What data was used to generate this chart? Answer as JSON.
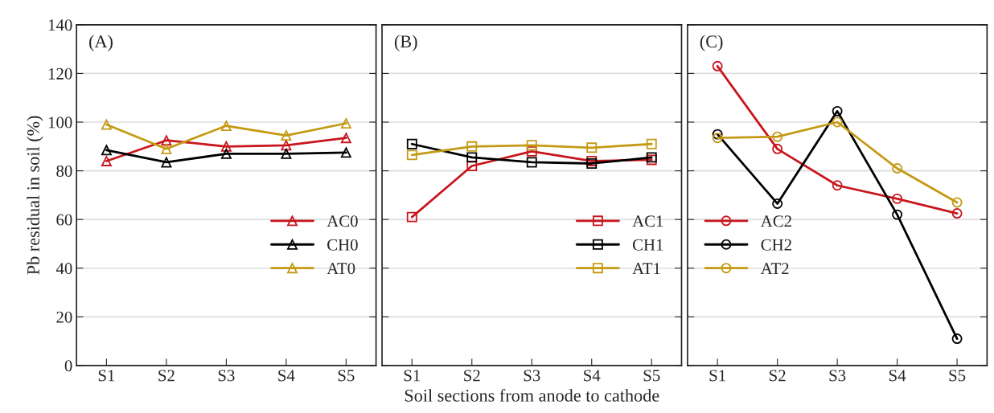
{
  "chart_data": [
    {
      "type": "line",
      "annotations": [
        "(A)"
      ],
      "ylabel": "Pb residual in soil (%)",
      "categories": [
        "S1",
        "S2",
        "S3",
        "S4",
        "S5"
      ],
      "ylim": [
        0,
        140
      ],
      "yticks": [
        0,
        20,
        40,
        60,
        80,
        100,
        120,
        140
      ],
      "grid": "y",
      "legend": "center right",
      "marker": "triangle",
      "line_style": "solid",
      "series": [
        {
          "name": "AC0",
          "color": "#c8161d",
          "values": [
            84,
            92.5,
            90,
            90.5,
            93.5
          ]
        },
        {
          "name": "CH0",
          "color": "#000000",
          "values": [
            88.5,
            83.5,
            87,
            87,
            87.5
          ]
        },
        {
          "name": "AT0",
          "color": "#c49a14",
          "values": [
            99,
            89,
            98.5,
            94.5,
            99.5
          ]
        }
      ]
    },
    {
      "type": "line",
      "annotations": [
        "(B)"
      ],
      "xlabel": "Soil sections from anode to cathode",
      "categories": [
        "S1",
        "S2",
        "S3",
        "S4",
        "S5"
      ],
      "ylim": [
        0,
        140
      ],
      "yticks": [
        0,
        20,
        40,
        60,
        80,
        100,
        120,
        140
      ],
      "tick_labels": "x",
      "grid": "y",
      "legend": "center right",
      "marker": "square",
      "line_style": "solid",
      "series": [
        {
          "name": "AC1",
          "color": "#c8161d",
          "values": [
            61,
            82,
            88,
            84,
            84.5
          ]
        },
        {
          "name": "CH1",
          "color": "#000000",
          "values": [
            91,
            85.5,
            83.5,
            83,
            85.5
          ]
        },
        {
          "name": "AT1",
          "color": "#c49a14",
          "values": [
            86.5,
            90,
            90.5,
            89.5,
            91
          ]
        }
      ]
    },
    {
      "type": "line",
      "annotations": [
        "(C)"
      ],
      "categories": [
        "S1",
        "S2",
        "S3",
        "S4",
        "S5"
      ],
      "ylim": [
        0,
        140
      ],
      "yticks": [
        0,
        20,
        40,
        60,
        80,
        100,
        120,
        140
      ],
      "tick_labels": "x",
      "grid": "y",
      "legend": "center left",
      "marker": "circle",
      "line_style": "solid",
      "series": [
        {
          "name": "AC2",
          "color": "#c8161d",
          "values": [
            123,
            89,
            74,
            68.5,
            62.5
          ]
        },
        {
          "name": "CH2",
          "color": "#000000",
          "values": [
            95,
            66.5,
            104.5,
            62,
            11
          ]
        },
        {
          "name": "AT2",
          "color": "#c49a14",
          "values": [
            93.5,
            94,
            100,
            81,
            67
          ]
        }
      ]
    }
  ]
}
